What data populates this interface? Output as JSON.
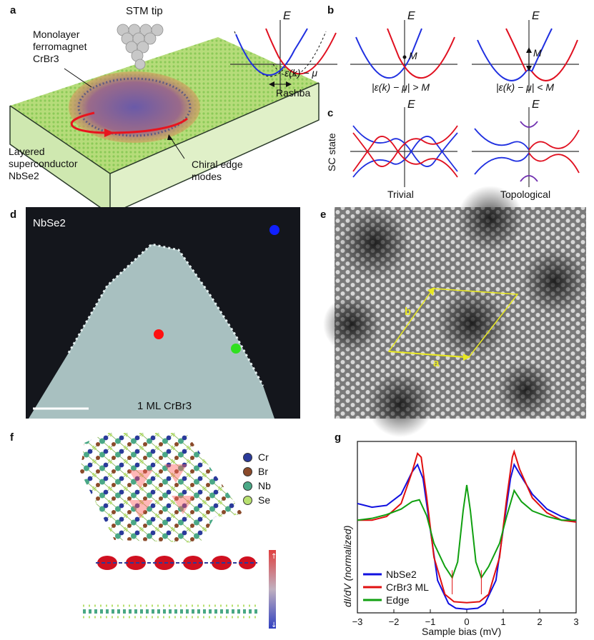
{
  "panels": {
    "a": "a",
    "b": "b",
    "c": "c",
    "d": "d",
    "e": "e",
    "f": "f",
    "g": "g"
  },
  "a": {
    "stm_tip": "STM tip",
    "monolayer_l1": "Monolayer",
    "monolayer_l2": "ferromagnet",
    "monolayer_l3": "CrBr3",
    "layered_l1": "Layered",
    "layered_l2": "superconductor",
    "layered_l3": "NbSe2",
    "chiral_l1": "Chiral edge",
    "chiral_l2": "modes"
  },
  "b": {
    "E": "E",
    "eps_label": "ε(k) − μ",
    "rashba": "Rashba",
    "M": "M",
    "cond1": "|ε(k) − μ| > M",
    "cond2": "|ε(k) − μ| < M"
  },
  "c": {
    "E": "E",
    "sc_state": "SC state",
    "trivial": "Trivial",
    "topological": "Topological"
  },
  "d": {
    "nbse2": "NbSe2",
    "crbr3": "1 ML CrBr3"
  },
  "e": {
    "a": "a",
    "b": "b"
  },
  "f": {
    "legend": [
      {
        "label": "Cr",
        "color": "#2a3a9a"
      },
      {
        "label": "Br",
        "color": "#8a4a2a"
      },
      {
        "label": "Nb",
        "color": "#4aa886"
      },
      {
        "label": "Se",
        "color": "#b8e070"
      }
    ]
  },
  "chart_data": {
    "type": "line",
    "xlabel": "Sample bias (mV)",
    "ylabel": "dI/dV (normalized)",
    "xlim": [
      -3,
      3
    ],
    "x_ticks": [
      "−3",
      "−2",
      "−1",
      "0",
      "1",
      "2",
      "3"
    ],
    "series": [
      {
        "name": "NbSe2",
        "color": "#1010e0",
        "x": [
          -3,
          -2.6,
          -2.2,
          -1.8,
          -1.5,
          -1.35,
          -1.2,
          -1.0,
          -0.8,
          -0.5,
          -0.3,
          0,
          0.3,
          0.5,
          0.8,
          1.0,
          1.2,
          1.3,
          1.45,
          1.8,
          2.2,
          2.6,
          3
        ],
        "y": [
          1.18,
          1.14,
          1.16,
          1.28,
          1.52,
          1.6,
          1.45,
          0.9,
          0.35,
          0.1,
          0.05,
          0.04,
          0.05,
          0.1,
          0.35,
          0.9,
          1.45,
          1.6,
          1.5,
          1.28,
          1.12,
          1.04,
          0.98
        ]
      },
      {
        "name": "CrBr3 ML",
        "color": "#e01010",
        "x": [
          -3,
          -2.6,
          -2.2,
          -1.8,
          -1.5,
          -1.35,
          -1.25,
          -1.1,
          -0.9,
          -0.6,
          -0.35,
          0,
          0.35,
          0.6,
          0.9,
          1.1,
          1.25,
          1.3,
          1.45,
          1.8,
          2.2,
          2.6,
          3
        ],
        "y": [
          1.0,
          1.0,
          1.04,
          1.18,
          1.52,
          1.72,
          1.68,
          1.25,
          0.6,
          0.2,
          0.12,
          0.11,
          0.12,
          0.2,
          0.6,
          1.25,
          1.68,
          1.74,
          1.55,
          1.24,
          1.08,
          1.0,
          0.98
        ]
      },
      {
        "name": "Edge",
        "color": "#10a010",
        "x": [
          -3,
          -2.6,
          -2.2,
          -1.8,
          -1.5,
          -1.3,
          -1.1,
          -0.9,
          -0.6,
          -0.4,
          -0.25,
          -0.1,
          0,
          0.1,
          0.25,
          0.4,
          0.6,
          0.9,
          1.1,
          1.3,
          1.5,
          1.8,
          2.2,
          2.6,
          3
        ],
        "y": [
          1.0,
          1.02,
          1.06,
          1.12,
          1.2,
          1.22,
          1.05,
          0.75,
          0.5,
          0.38,
          0.55,
          1.1,
          1.38,
          1.1,
          0.55,
          0.38,
          0.5,
          0.75,
          1.05,
          1.32,
          1.2,
          1.1,
          1.04,
          1.0,
          1.0
        ]
      }
    ]
  }
}
